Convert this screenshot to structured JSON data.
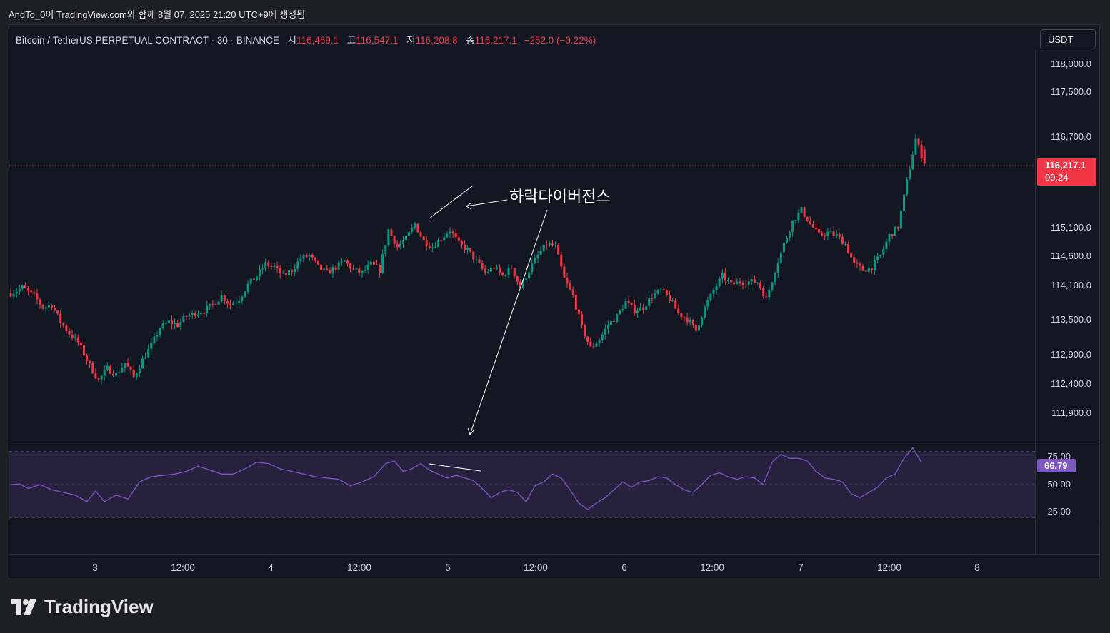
{
  "caption": "AndTo_0이 TradingView.com와 함께 8월 07, 2025 21:20 UTC+9에 생성됨",
  "legend": {
    "symbol": "Bitcoin / TetherUS PERPETUAL CONTRACT · 30 · BINANCE",
    "o_label": "시",
    "o_value": "116,469.1",
    "h_label": "고",
    "h_value": "116,547.1",
    "l_label": "저",
    "l_value": "116,208.8",
    "c_label": "종",
    "c_value": "116,217.1",
    "change": "−252.0 (−0.22%)"
  },
  "currency_button": "USDT",
  "price_axis": {
    "ticks": [
      "118,000.0",
      "117,500.0",
      "116,700.0",
      "115,100.0",
      "114,600.0",
      "114,100.0",
      "113,500.0",
      "112,900.0",
      "112,400.0",
      "111,900.0"
    ],
    "last_price": "116,217.1",
    "countdown": "09:24"
  },
  "rsi_axis": {
    "ticks": [
      "75.00",
      "50.00",
      "25.00"
    ],
    "value": "66.79"
  },
  "time_axis": [
    "3",
    "12:00",
    "4",
    "12:00",
    "5",
    "12:00",
    "6",
    "12:00",
    "7",
    "12:00",
    "8"
  ],
  "annotation": "하락다이버전스",
  "brand": "TradingView",
  "colors": {
    "up": "#089981",
    "down": "#f23645",
    "rsi": "#7e57c2",
    "background": "#131722"
  },
  "chart_data": [
    {
      "type": "candlestick",
      "title": "Bitcoin / TetherUS PERPETUAL CONTRACT · 30 · BINANCE",
      "x_ticks": [
        "3",
        "12:00",
        "4",
        "12:00",
        "5",
        "12:00",
        "6",
        "12:00",
        "7",
        "12:00",
        "8"
      ],
      "y_ticks": [
        118000,
        117500,
        116700,
        115100,
        114600,
        114100,
        113500,
        112900,
        112400,
        111900
      ],
      "last": 116217.1,
      "close_path": [
        [
          0,
          113950
        ],
        [
          4,
          114050
        ],
        [
          8,
          113900
        ],
        [
          11,
          113700
        ],
        [
          14,
          113750
        ],
        [
          17,
          113450
        ],
        [
          20,
          113250
        ],
        [
          23,
          113100
        ],
        [
          27,
          112700
        ],
        [
          30,
          112450
        ],
        [
          33,
          112650
        ],
        [
          36,
          112550
        ],
        [
          39,
          112750
        ],
        [
          42,
          112500
        ],
        [
          45,
          112800
        ],
        [
          48,
          113050
        ],
        [
          51,
          113350
        ],
        [
          54,
          113450
        ],
        [
          57,
          113400
        ],
        [
          60,
          113550
        ],
        [
          63,
          113600
        ],
        [
          66,
          113650
        ],
        [
          69,
          113750
        ],
        [
          72,
          113900
        ],
        [
          75,
          113750
        ],
        [
          78,
          113850
        ],
        [
          81,
          114100
        ],
        [
          84,
          114250
        ],
        [
          87,
          114450
        ],
        [
          90,
          114400
        ],
        [
          93,
          114250
        ],
        [
          96,
          114350
        ],
        [
          99,
          114550
        ],
        [
          102,
          114600
        ],
        [
          105,
          114400
        ],
        [
          108,
          114300
        ],
        [
          111,
          114400
        ],
        [
          114,
          114500
        ],
        [
          117,
          114350
        ],
        [
          120,
          114300
        ],
        [
          123,
          114450
        ],
        [
          126,
          114350
        ],
        [
          129,
          115050
        ],
        [
          132,
          114750
        ],
        [
          135,
          114900
        ],
        [
          138,
          115150
        ],
        [
          141,
          114850
        ],
        [
          144,
          114750
        ],
        [
          147,
          114900
        ],
        [
          150,
          115050
        ],
        [
          153,
          114800
        ],
        [
          156,
          114700
        ],
        [
          159,
          114500
        ],
        [
          162,
          114300
        ],
        [
          165,
          114400
        ],
        [
          168,
          114250
        ],
        [
          171,
          114400
        ],
        [
          174,
          114050
        ],
        [
          177,
          114350
        ],
        [
          180,
          114600
        ],
        [
          183,
          114800
        ],
        [
          186,
          114750
        ],
        [
          189,
          114200
        ],
        [
          192,
          113900
        ],
        [
          195,
          113350
        ],
        [
          198,
          113000
        ],
        [
          201,
          113150
        ],
        [
          204,
          113400
        ],
        [
          207,
          113550
        ],
        [
          210,
          113800
        ],
        [
          213,
          113650
        ],
        [
          216,
          113700
        ],
        [
          219,
          113900
        ],
        [
          222,
          114000
        ],
        [
          225,
          113850
        ],
        [
          228,
          113600
        ],
        [
          231,
          113500
        ],
        [
          234,
          113300
        ],
        [
          237,
          113700
        ],
        [
          240,
          114000
        ],
        [
          243,
          114250
        ],
        [
          246,
          114100
        ],
        [
          249,
          114150
        ],
        [
          252,
          114150
        ],
        [
          255,
          114150
        ],
        [
          258,
          113850
        ],
        [
          261,
          114350
        ],
        [
          264,
          114800
        ],
        [
          267,
          115200
        ],
        [
          270,
          115400
        ],
        [
          273,
          115150
        ],
        [
          276,
          114950
        ],
        [
          279,
          115000
        ],
        [
          282,
          114950
        ],
        [
          285,
          114800
        ],
        [
          288,
          114450
        ],
        [
          291,
          114350
        ],
        [
          294,
          114400
        ],
        [
          297,
          114600
        ],
        [
          300,
          114950
        ],
        [
          303,
          115100
        ],
        [
          306,
          115900
        ],
        [
          309,
          116650
        ],
        [
          312,
          116217
        ]
      ]
    },
    {
      "type": "line",
      "title": "RSI",
      "y_ticks": [
        75,
        50,
        25
      ],
      "last": 66.79,
      "values": [
        [
          0,
          50
        ],
        [
          3,
          50.5
        ],
        [
          6,
          47
        ],
        [
          10,
          50
        ],
        [
          14,
          46
        ],
        [
          18,
          44
        ],
        [
          22,
          42
        ],
        [
          26,
          37
        ],
        [
          29,
          45
        ],
        [
          32,
          37
        ],
        [
          36,
          42
        ],
        [
          40,
          39
        ],
        [
          44,
          52
        ],
        [
          48,
          56
        ],
        [
          52,
          57
        ],
        [
          56,
          58
        ],
        [
          60,
          60
        ],
        [
          64,
          64
        ],
        [
          68,
          61
        ],
        [
          72,
          58
        ],
        [
          76,
          58
        ],
        [
          80,
          62
        ],
        [
          84,
          67
        ],
        [
          88,
          66
        ],
        [
          92,
          62
        ],
        [
          96,
          60
        ],
        [
          100,
          58
        ],
        [
          104,
          56
        ],
        [
          108,
          55
        ],
        [
          112,
          54
        ],
        [
          116,
          49
        ],
        [
          120,
          52
        ],
        [
          124,
          56
        ],
        [
          128,
          66
        ],
        [
          131,
          68
        ],
        [
          134,
          60
        ],
        [
          137,
          62
        ],
        [
          140,
          66
        ],
        [
          143,
          61
        ],
        [
          146,
          58
        ],
        [
          149,
          55
        ],
        [
          152,
          57
        ],
        [
          155,
          55
        ],
        [
          158,
          53
        ],
        [
          161,
          47
        ],
        [
          164,
          40
        ],
        [
          167,
          44
        ],
        [
          170,
          46
        ],
        [
          173,
          44
        ],
        [
          176,
          37
        ],
        [
          179,
          49
        ],
        [
          182,
          52
        ],
        [
          185,
          58
        ],
        [
          188,
          55
        ],
        [
          191,
          46
        ],
        [
          194,
          36
        ],
        [
          197,
          31
        ],
        [
          200,
          36
        ],
        [
          203,
          40
        ],
        [
          206,
          46
        ],
        [
          209,
          52
        ],
        [
          212,
          48
        ],
        [
          215,
          52
        ],
        [
          218,
          53
        ],
        [
          221,
          56
        ],
        [
          224,
          55
        ],
        [
          227,
          50
        ],
        [
          230,
          46
        ],
        [
          233,
          44
        ],
        [
          236,
          50
        ],
        [
          239,
          57
        ],
        [
          242,
          59
        ],
        [
          245,
          56
        ],
        [
          248,
          54
        ],
        [
          251,
          56
        ],
        [
          254,
          55
        ],
        [
          257,
          50
        ],
        [
          260,
          67
        ],
        [
          263,
          73
        ],
        [
          266,
          70
        ],
        [
          269,
          70
        ],
        [
          272,
          68
        ],
        [
          275,
          60
        ],
        [
          278,
          55
        ],
        [
          281,
          54
        ],
        [
          284,
          52
        ],
        [
          287,
          43
        ],
        [
          290,
          40
        ],
        [
          293,
          44
        ],
        [
          296,
          48
        ],
        [
          299,
          55
        ],
        [
          302,
          58
        ],
        [
          305,
          70
        ],
        [
          308,
          78
        ],
        [
          311,
          66.79
        ]
      ]
    }
  ]
}
